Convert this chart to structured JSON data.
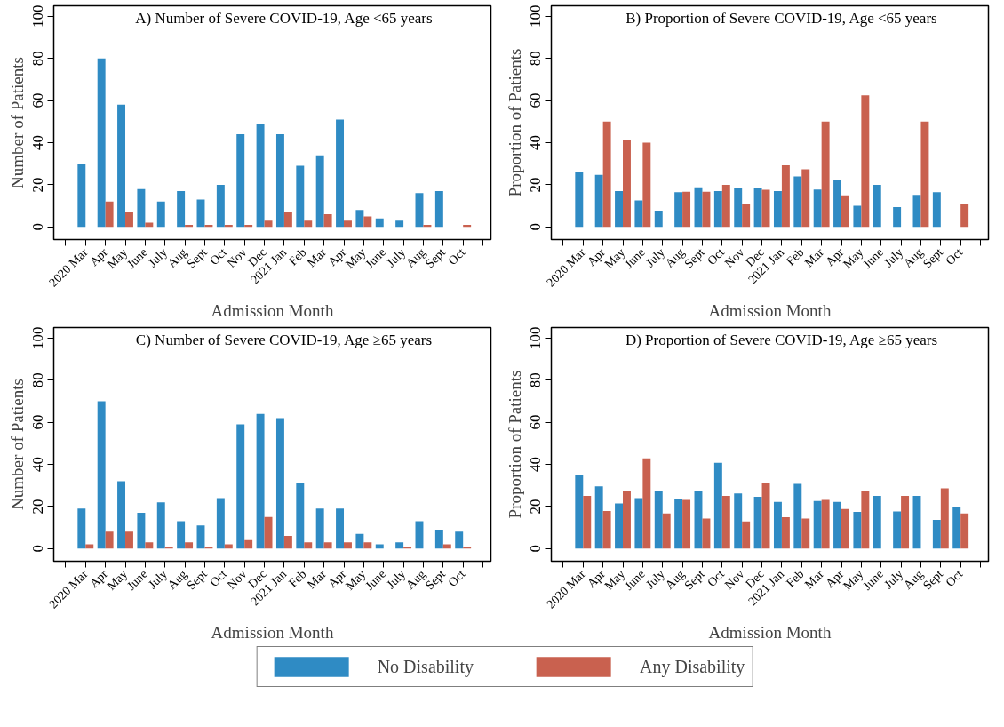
{
  "chart_data": [
    {
      "type": "bar",
      "title": "A) Number of Severe COVID-19, Age <65 years",
      "xlabel": "Admission Month",
      "ylabel": "Number of Patients",
      "categories": [
        "2020 Mar",
        "Apr",
        "May",
        "June",
        "July",
        "Aug",
        "Sept",
        "Oct",
        "Nov",
        "Dec",
        "2021 Jan",
        "Feb",
        "Mar",
        "Apr",
        "May",
        "June",
        "July",
        "Aug",
        "Sept",
        "Oct"
      ],
      "series": [
        {
          "name": "No Disability",
          "color": "#2f8bc4",
          "values": [
            30,
            80,
            58,
            18,
            12,
            17,
            13,
            20,
            44,
            49,
            44,
            29,
            34,
            51,
            8,
            4,
            3,
            16,
            17,
            null
          ]
        },
        {
          "name": "Any Disability",
          "color": "#c9614f",
          "values": [
            null,
            12,
            7,
            2,
            null,
            1,
            1,
            1,
            1,
            3,
            7,
            3,
            6,
            3,
            5,
            null,
            null,
            1,
            null,
            1
          ]
        }
      ],
      "ylim": [
        -6,
        105
      ],
      "yticks": [
        0,
        20,
        40,
        60,
        80,
        100
      ],
      "legend": "bottom"
    },
    {
      "type": "bar",
      "title": "B) Proportion of Severe COVID-19, Age <65 years",
      "xlabel": "Admission Month",
      "ylabel": "Proportion of Patients",
      "categories": [
        "2020 Mar",
        "Apr",
        "May",
        "June",
        "July",
        "Aug",
        "Sept",
        "Oct",
        "Nov",
        "Dec",
        "2021 Jan",
        "Feb",
        "Mar",
        "Apr",
        "May",
        "June",
        "July",
        "Aug",
        "Sept",
        "Oct"
      ],
      "series": [
        {
          "color": "#2f8bc4",
          "values": [
            26,
            24.7,
            17,
            12.6,
            7.7,
            16.5,
            18.8,
            17,
            18.5,
            18.7,
            17,
            24,
            17.7,
            22.4,
            10,
            20,
            9.4,
            15.2,
            16.5,
            null
          ]
        },
        {
          "color": "#c9614f",
          "values": [
            null,
            50,
            41.2,
            40,
            null,
            16.7,
            16.7,
            20,
            11.1,
            17.6,
            29.2,
            27.3,
            50,
            15,
            62.5,
            null,
            null,
            50,
            null,
            11.1
          ]
        }
      ],
      "ylim": [
        -6,
        105
      ],
      "yticks": [
        0,
        20,
        40,
        60,
        80,
        100
      ]
    },
    {
      "type": "bar",
      "title": "C) Number of Severe COVID-19, Age ≥65 years",
      "xlabel": "Admission Month",
      "ylabel": "Number of Patients",
      "categories": [
        "2020 Mar",
        "Apr",
        "May",
        "June",
        "July",
        "Aug",
        "Sept",
        "Oct",
        "Nov",
        "Dec",
        "2021 Jan",
        "Feb",
        "Mar",
        "Apr",
        "May",
        "June",
        "July",
        "Aug",
        "Sept",
        "Oct"
      ],
      "series": [
        {
          "color": "#2f8bc4",
          "values": [
            19,
            70,
            32,
            17,
            22,
            13,
            11,
            24,
            59,
            64,
            62,
            31,
            19,
            19,
            7,
            2,
            3,
            13,
            9,
            8
          ]
        },
        {
          "color": "#c9614f",
          "values": [
            2,
            8,
            8,
            3,
            1,
            3,
            1,
            2,
            4,
            15,
            6,
            3,
            3,
            3,
            3,
            null,
            1,
            null,
            2,
            1
          ]
        }
      ],
      "ylim": [
        -6,
        105
      ],
      "yticks": [
        0,
        20,
        40,
        60,
        80,
        100
      ]
    },
    {
      "type": "bar",
      "title": "D) Proportion of Severe COVID-19, Age ≥65 years",
      "xlabel": "Admission Month",
      "ylabel": "Proportion of Patients",
      "categories": [
        "2020 Mar",
        "Apr",
        "May",
        "June",
        "July",
        "Aug",
        "Sept",
        "Oct",
        "Nov",
        "Dec",
        "2021 Jan",
        "Feb",
        "Mar",
        "Apr",
        "May",
        "June",
        "July",
        "Aug",
        "Sept",
        "Oct"
      ],
      "series": [
        {
          "color": "#2f8bc4",
          "values": [
            35.2,
            29.6,
            21.4,
            24,
            27.5,
            23.3,
            27.5,
            40.7,
            26.2,
            24.6,
            22.2,
            30.7,
            22.6,
            22.2,
            17.4,
            25,
            17.6,
            25,
            13.6,
            20
          ]
        },
        {
          "color": "#c9614f",
          "values": [
            25,
            17.8,
            27.6,
            42.9,
            16.7,
            23.1,
            14.3,
            25,
            12.9,
            31.3,
            14.9,
            14.3,
            23.1,
            18.8,
            27.3,
            null,
            25,
            null,
            28.6,
            16.7
          ]
        }
      ],
      "ylim": [
        -6,
        105
      ],
      "yticks": [
        0,
        20,
        40,
        60,
        80,
        100
      ]
    }
  ]
}
